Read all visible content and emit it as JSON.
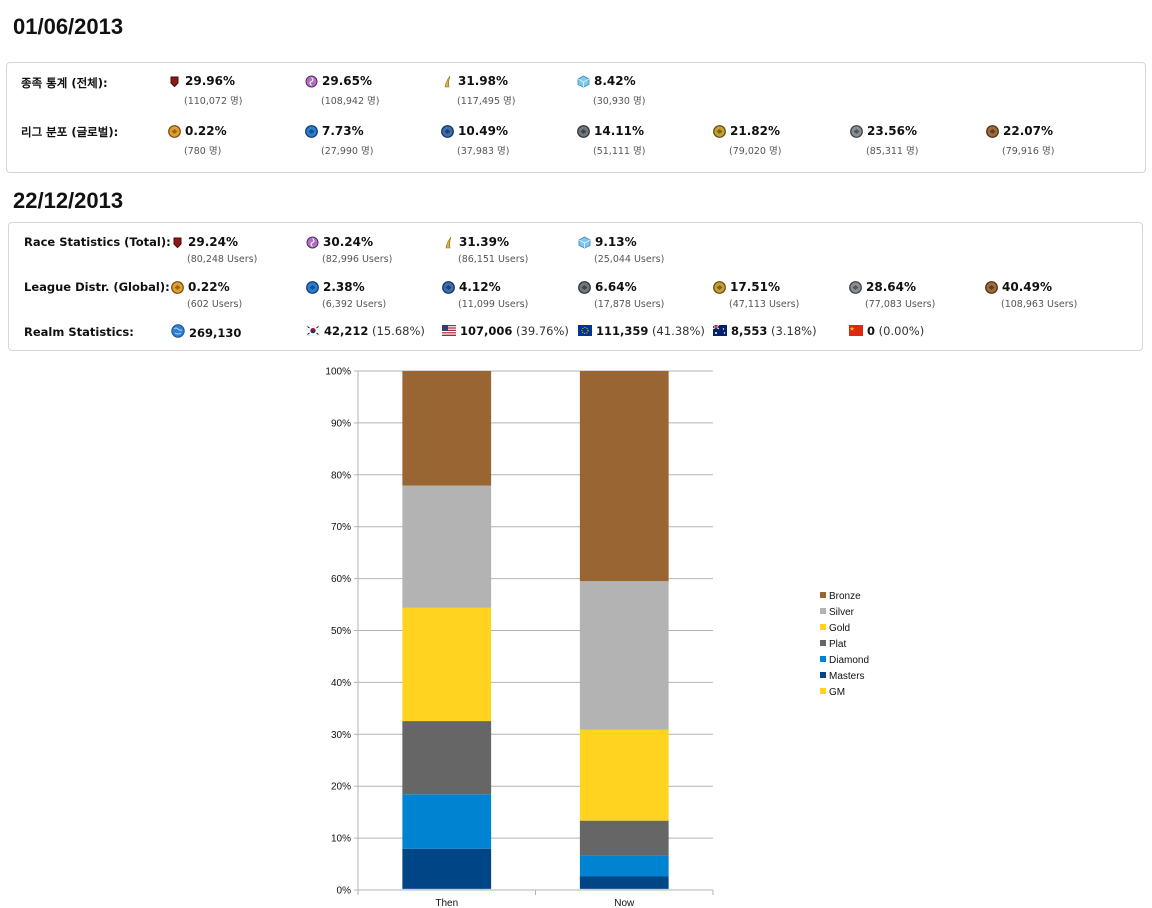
{
  "section1": {
    "date": "01/06/2013",
    "race_label": "종족 통계 (전체):",
    "race": [
      {
        "icon": "terran-icon",
        "pct": "29.96%",
        "count": "(110,072 명)"
      },
      {
        "icon": "zerg-icon",
        "pct": "29.65%",
        "count": "(108,942 명)"
      },
      {
        "icon": "protoss-icon",
        "pct": "31.98%",
        "count": "(117,495 명)"
      },
      {
        "icon": "random-icon",
        "pct": "8.42%",
        "count": "(30,930 명)"
      }
    ],
    "league_label": "리그 분포 (글로벌):",
    "league": [
      {
        "icon": "grandmaster-league-icon",
        "pct": "0.22%",
        "count": "(780 명)"
      },
      {
        "icon": "master-league-icon",
        "pct": "7.73%",
        "count": "(27,990 명)"
      },
      {
        "icon": "diamond-league-icon",
        "pct": "10.49%",
        "count": "(37,983 명)"
      },
      {
        "icon": "platinum-league-icon",
        "pct": "14.11%",
        "count": "(51,111 명)"
      },
      {
        "icon": "gold-league-icon",
        "pct": "21.82%",
        "count": "(79,020 명)"
      },
      {
        "icon": "silver-league-icon",
        "pct": "23.56%",
        "count": "(85,311 명)"
      },
      {
        "icon": "bronze-league-icon",
        "pct": "22.07%",
        "count": "(79,916 명)"
      }
    ]
  },
  "section2": {
    "date": "22/12/2013",
    "race_label": "Race Statistics (Total):",
    "race": [
      {
        "icon": "terran-icon",
        "pct": "29.24%",
        "count": "(80,248 Users)"
      },
      {
        "icon": "zerg-icon",
        "pct": "30.24%",
        "count": "(82,996 Users)"
      },
      {
        "icon": "protoss-icon",
        "pct": "31.39%",
        "count": "(86,151 Users)"
      },
      {
        "icon": "random-icon",
        "pct": "9.13%",
        "count": "(25,044 Users)"
      }
    ],
    "league_label": "League Distr. (Global):",
    "league": [
      {
        "icon": "grandmaster-league-icon",
        "pct": "0.22%",
        "count": "(602 Users)"
      },
      {
        "icon": "master-league-icon",
        "pct": "2.38%",
        "count": "(6,392 Users)"
      },
      {
        "icon": "diamond-league-icon",
        "pct": "4.12%",
        "count": "(11,099 Users)"
      },
      {
        "icon": "platinum-league-icon",
        "pct": "6.64%",
        "count": "(17,878 Users)"
      },
      {
        "icon": "gold-league-icon",
        "pct": "17.51%",
        "count": "(47,113 Users)"
      },
      {
        "icon": "silver-league-icon",
        "pct": "28.64%",
        "count": "(77,083 Users)"
      },
      {
        "icon": "bronze-league-icon",
        "pct": "40.49%",
        "count": "(108,963 Users)"
      }
    ],
    "realm_label": "Realm Statistics:",
    "realm_total": {
      "icon": "globe-icon",
      "value": "269,130"
    },
    "realms": [
      {
        "icon": "korea-flag-icon",
        "value": "42,212",
        "pct": "(15.68%)"
      },
      {
        "icon": "usa-flag-icon",
        "value": "107,006",
        "pct": "(39.76%)"
      },
      {
        "icon": "eu-flag-icon",
        "value": "111,359",
        "pct": "(41.38%)"
      },
      {
        "icon": "australia-flag-icon",
        "value": "8,553",
        "pct": "(3.18%)"
      },
      {
        "icon": "china-flag-icon",
        "value": "0",
        "pct": "(0.00%)"
      }
    ]
  },
  "chart_data": {
    "type": "bar",
    "stacked": true,
    "categories": [
      "Then",
      "Now"
    ],
    "ylim": [
      0,
      100
    ],
    "yticks": [
      "0%",
      "10%",
      "20%",
      "30%",
      "40%",
      "50%",
      "60%",
      "70%",
      "80%",
      "90%",
      "100%"
    ],
    "grid": true,
    "legend_position": "right",
    "series": [
      {
        "name": "GM",
        "color": "#ffd320",
        "values": [
          0.22,
          0.22
        ]
      },
      {
        "name": "Masters",
        "color": "#004586",
        "values": [
          7.73,
          2.38
        ]
      },
      {
        "name": "Diamond",
        "color": "#0084d1",
        "values": [
          10.49,
          4.12
        ]
      },
      {
        "name": "Plat",
        "color": "#666666",
        "values": [
          14.11,
          6.64
        ]
      },
      {
        "name": "Gold",
        "color": "#ffd320",
        "values": [
          21.82,
          17.51
        ]
      },
      {
        "name": "Silver",
        "color": "#b3b3b3",
        "values": [
          23.56,
          28.64
        ]
      },
      {
        "name": "Bronze",
        "color": "#996633",
        "values": [
          22.07,
          40.49
        ]
      }
    ]
  }
}
